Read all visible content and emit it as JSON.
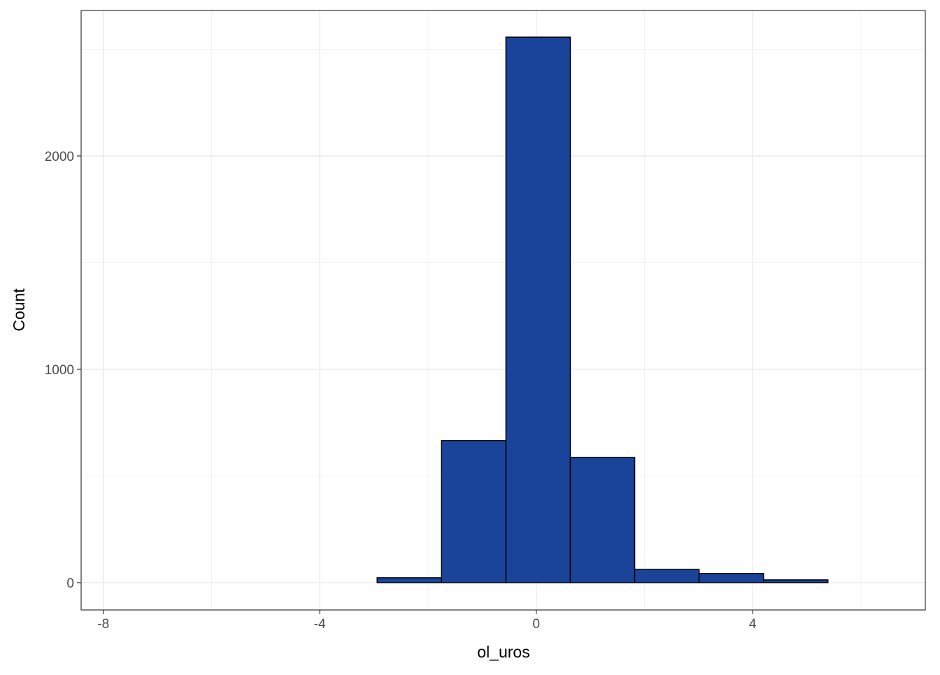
{
  "chart_data": {
    "type": "histogram",
    "x_label": "ol_uros",
    "y_label": "Count",
    "bins": [
      -7.7,
      -6.51,
      -5.32,
      -4.13,
      -2.94,
      -1.75,
      -0.56,
      0.63,
      1.82,
      3.01,
      4.2,
      5.39,
      6.58
    ],
    "values": [
      0,
      0,
      0,
      0,
      23,
      666,
      2557,
      587,
      62,
      43,
      13,
      0
    ],
    "color": "#1a4499",
    "xlim": [
      -8.41,
      7.19
    ],
    "xticks": [
      -8,
      -4,
      0,
      4
    ],
    "ylim": [
      -128,
      2682
    ],
    "yticks": [
      0,
      1000,
      2000
    ],
    "grid": true
  }
}
